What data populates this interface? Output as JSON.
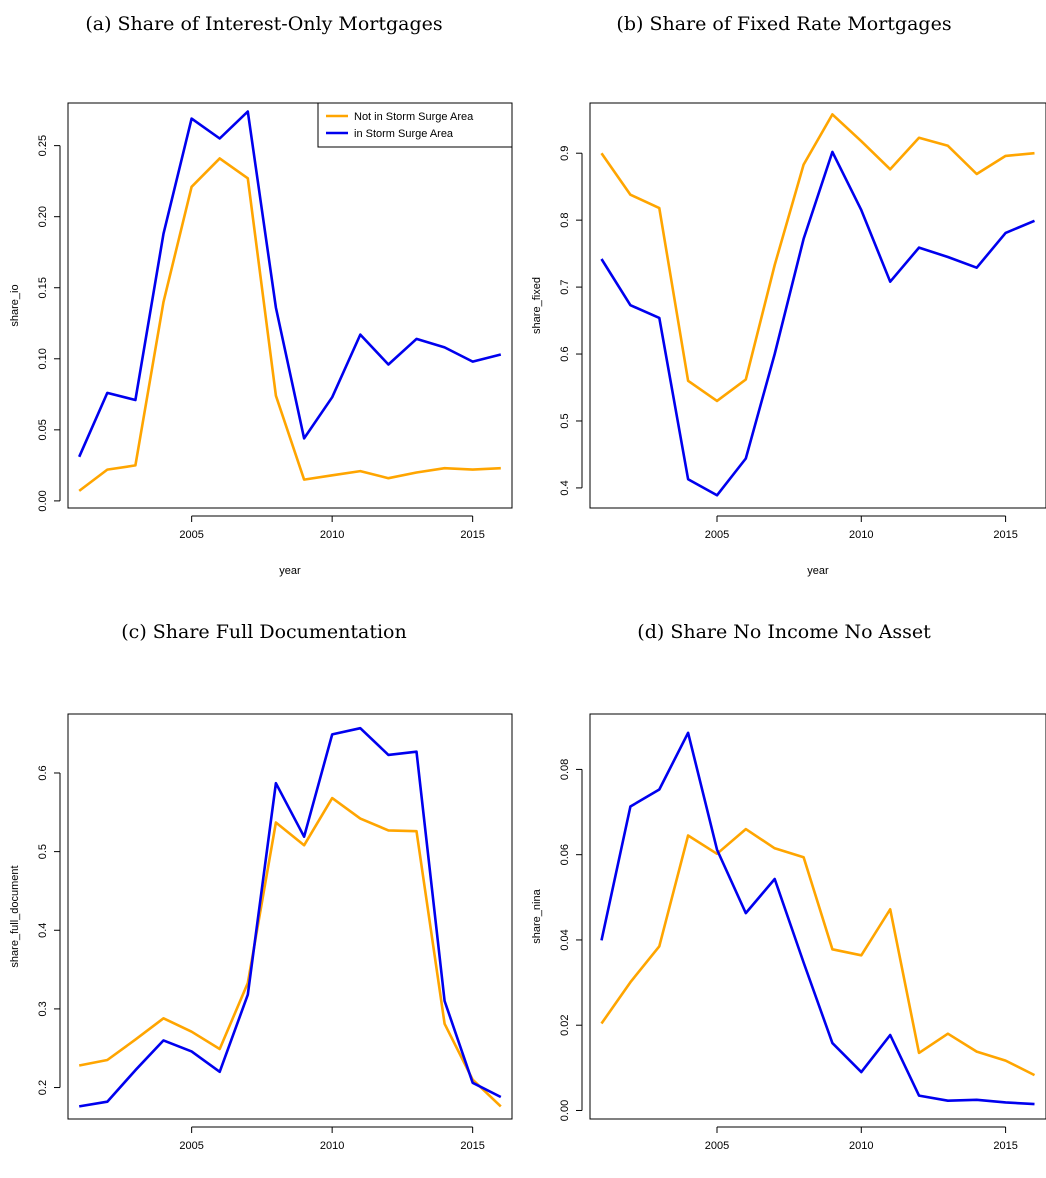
{
  "colors": {
    "not_in_area": "#FFA500",
    "in_area": "#0000EE"
  },
  "legend": {
    "entries": [
      "Not in Storm Surge Area",
      "in Storm Surge Area"
    ],
    "placement": "top-right"
  },
  "chart_data": [
    {
      "type": "line",
      "title": "(a) Share of Interest-Only Mortgages",
      "xlabel": "year",
      "ylabel": "share_io",
      "xlim": [
        2000.6,
        2016.4
      ],
      "ylim": [
        -0.005,
        0.28
      ],
      "xticks": [
        2005,
        2010,
        2015
      ],
      "xtick_labels": [
        "2005",
        "2010",
        "2015"
      ],
      "yticks": [
        0,
        0.05,
        0.1,
        0.15,
        0.2,
        0.25
      ],
      "ytick_labels": [
        "0.00",
        "0.05",
        "0.10",
        "0.15",
        "0.20",
        "0.25"
      ],
      "show_legend": true,
      "x": [
        2001,
        2002,
        2003,
        2004,
        2005,
        2006,
        2007,
        2008,
        2009,
        2010,
        2011,
        2012,
        2013,
        2014,
        2015,
        2016
      ],
      "series": [
        {
          "name": "Not in Storm Surge Area",
          "color": "#FFA500",
          "values": [
            0.007,
            0.022,
            0.025,
            0.14,
            0.221,
            0.241,
            0.227,
            0.074,
            0.015,
            0.018,
            0.021,
            0.016,
            0.02,
            0.023,
            0.022,
            0.023
          ]
        },
        {
          "name": "in Storm Surge Area",
          "color": "#0000EE",
          "values": [
            0.031,
            0.076,
            0.071,
            0.188,
            0.269,
            0.255,
            0.274,
            0.136,
            0.044,
            0.073,
            0.117,
            0.096,
            0.114,
            0.108,
            0.098,
            0.103
          ]
        }
      ]
    },
    {
      "type": "line",
      "title": "(b) Share of Fixed Rate Mortgages",
      "xlabel": "year",
      "ylabel": "share_fixed",
      "xlim": [
        2000.6,
        2016.4
      ],
      "ylim": [
        0.37,
        0.975
      ],
      "xticks": [
        2005,
        2010,
        2015
      ],
      "xtick_labels": [
        "2005",
        "2010",
        "2015"
      ],
      "yticks": [
        0.4,
        0.5,
        0.6,
        0.7,
        0.8,
        0.9
      ],
      "ytick_labels": [
        "0.4",
        "0.5",
        "0.6",
        "0.7",
        "0.8",
        "0.9"
      ],
      "show_legend": false,
      "x": [
        2001,
        2002,
        2003,
        2004,
        2005,
        2006,
        2007,
        2008,
        2009,
        2010,
        2011,
        2012,
        2013,
        2014,
        2015,
        2016
      ],
      "series": [
        {
          "name": "Not in Storm Surge Area",
          "color": "#FFA500",
          "values": [
            0.9,
            0.838,
            0.818,
            0.56,
            0.53,
            0.562,
            0.733,
            0.883,
            0.958,
            0.918,
            0.876,
            0.923,
            0.911,
            0.869,
            0.896,
            0.9
          ]
        },
        {
          "name": "in Storm Surge Area",
          "color": "#0000EE",
          "values": [
            0.742,
            0.673,
            0.654,
            0.413,
            0.389,
            0.444,
            0.6,
            0.772,
            0.902,
            0.815,
            0.708,
            0.759,
            0.745,
            0.729,
            0.781,
            0.799
          ]
        }
      ]
    },
    {
      "type": "line",
      "title": "(c) Share Full Documentation",
      "xlabel": "year",
      "ylabel": "share_full_document",
      "xlim": [
        2000.6,
        2016.4
      ],
      "ylim": [
        0.16,
        0.675
      ],
      "xticks": [
        2005,
        2010,
        2015
      ],
      "xtick_labels": [
        "2005",
        "2010",
        "2015"
      ],
      "yticks": [
        0.2,
        0.3,
        0.4,
        0.5,
        0.6
      ],
      "ytick_labels": [
        "0.2",
        "0.3",
        "0.4",
        "0.5",
        "0.6"
      ],
      "show_legend": false,
      "x": [
        2001,
        2002,
        2003,
        2004,
        2005,
        2006,
        2007,
        2008,
        2009,
        2010,
        2011,
        2012,
        2013,
        2014,
        2015,
        2016
      ],
      "series": [
        {
          "name": "Not in Storm Surge Area",
          "color": "#FFA500",
          "values": [
            0.228,
            0.235,
            0.261,
            0.288,
            0.271,
            0.249,
            0.333,
            0.537,
            0.508,
            0.568,
            0.542,
            0.527,
            0.526,
            0.281,
            0.21,
            0.176
          ]
        },
        {
          "name": "in Storm Surge Area",
          "color": "#0000EE",
          "values": [
            0.176,
            0.182,
            0.222,
            0.26,
            0.246,
            0.22,
            0.318,
            0.587,
            0.519,
            0.649,
            0.657,
            0.623,
            0.627,
            0.31,
            0.206,
            0.188
          ]
        }
      ]
    },
    {
      "type": "line",
      "title": "(d) Share No Income No Asset",
      "xlabel": "year",
      "ylabel": "share_nina",
      "xlim": [
        2000.6,
        2016.4
      ],
      "ylim": [
        -0.002,
        0.093
      ],
      "xticks": [
        2005,
        2010,
        2015
      ],
      "xtick_labels": [
        "2005",
        "2010",
        "2015"
      ],
      "yticks": [
        0,
        0.02,
        0.04,
        0.06,
        0.08
      ],
      "ytick_labels": [
        "0.00",
        "0.02",
        "0.04",
        "0.06",
        "0.08"
      ],
      "show_legend": false,
      "x": [
        2001,
        2002,
        2003,
        2004,
        2005,
        2006,
        2007,
        2008,
        2009,
        2010,
        2011,
        2012,
        2013,
        2014,
        2015,
        2016
      ],
      "series": [
        {
          "name": "Not in Storm Surge Area",
          "color": "#FFA500",
          "values": [
            0.0204,
            0.0301,
            0.0385,
            0.0645,
            0.0602,
            0.066,
            0.0615,
            0.0594,
            0.0378,
            0.0364,
            0.0472,
            0.0135,
            0.018,
            0.0138,
            0.0117,
            0.0083
          ]
        },
        {
          "name": "in Storm Surge Area",
          "color": "#0000EE",
          "values": [
            0.0399,
            0.0713,
            0.0753,
            0.0886,
            0.0612,
            0.0463,
            0.0543,
            0.0347,
            0.0158,
            0.009,
            0.0177,
            0.0035,
            0.0023,
            0.0025,
            0.0019,
            0.0015
          ]
        }
      ]
    }
  ]
}
